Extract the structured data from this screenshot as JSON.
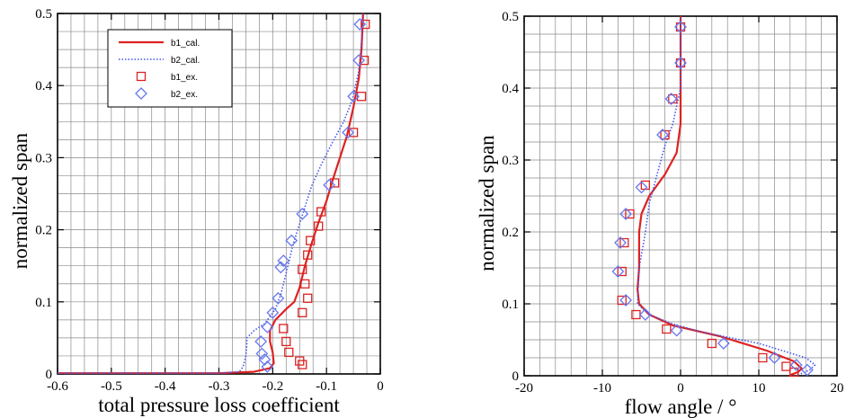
{
  "chart_data": [
    {
      "type": "line",
      "title": "",
      "xlabel": "total pressure loss coefficient",
      "ylabel": "normalized span",
      "xlim": [
        -0.6,
        0
      ],
      "ylim": [
        0,
        0.5
      ],
      "xticks": [
        "-0.6",
        "-0.5",
        "-0.4",
        "-0.3",
        "-0.2",
        "-0.1",
        "0"
      ],
      "yticks": [
        "0",
        "0.1",
        "0.2",
        "0.3",
        "0.4",
        "0.5"
      ],
      "grid": true,
      "legend_position": "top-left",
      "series": [
        {
          "name": "b1_cal.",
          "style": "solid",
          "marker": "none",
          "color": "#dd2222",
          "points": [
            [
              -0.6,
              0.001
            ],
            [
              -0.3,
              0.001
            ],
            [
              -0.235,
              0.003
            ],
            [
              -0.205,
              0.008
            ],
            [
              -0.198,
              0.015
            ],
            [
              -0.2,
              0.03
            ],
            [
              -0.205,
              0.045
            ],
            [
              -0.205,
              0.06
            ],
            [
              -0.195,
              0.075
            ],
            [
              -0.175,
              0.09
            ],
            [
              -0.16,
              0.1
            ],
            [
              -0.15,
              0.12
            ],
            [
              -0.14,
              0.15
            ],
            [
              -0.128,
              0.18
            ],
            [
              -0.115,
              0.21
            ],
            [
              -0.1,
              0.24
            ],
            [
              -0.088,
              0.27
            ],
            [
              -0.075,
              0.3
            ],
            [
              -0.062,
              0.33
            ],
            [
              -0.05,
              0.37
            ],
            [
              -0.04,
              0.41
            ],
            [
              -0.035,
              0.45
            ],
            [
              -0.032,
              0.5
            ]
          ]
        },
        {
          "name": "b2_cal.",
          "style": "dotted",
          "marker": "none",
          "color": "#4455ee",
          "points": [
            [
              -0.6,
              0.001
            ],
            [
              -0.3,
              0.001
            ],
            [
              -0.262,
              0.003
            ],
            [
              -0.255,
              0.01
            ],
            [
              -0.25,
              0.025
            ],
            [
              -0.248,
              0.04
            ],
            [
              -0.248,
              0.05
            ],
            [
              -0.235,
              0.06
            ],
            [
              -0.215,
              0.07
            ],
            [
              -0.195,
              0.09
            ],
            [
              -0.185,
              0.11
            ],
            [
              -0.175,
              0.14
            ],
            [
              -0.162,
              0.18
            ],
            [
              -0.145,
              0.22
            ],
            [
              -0.128,
              0.26
            ],
            [
              -0.11,
              0.29
            ],
            [
              -0.09,
              0.32
            ],
            [
              -0.068,
              0.35
            ],
            [
              -0.052,
              0.38
            ],
            [
              -0.04,
              0.42
            ],
            [
              -0.035,
              0.46
            ],
            [
              -0.033,
              0.5
            ]
          ]
        },
        {
          "name": "b1_ex.",
          "style": "none",
          "marker": "square",
          "color": "#dd2222",
          "points": [
            [
              -0.145,
              0.013
            ],
            [
              -0.15,
              0.018
            ],
            [
              -0.17,
              0.03
            ],
            [
              -0.175,
              0.045
            ],
            [
              -0.18,
              0.063
            ],
            [
              -0.145,
              0.085
            ],
            [
              -0.135,
              0.105
            ],
            [
              -0.14,
              0.125
            ],
            [
              -0.145,
              0.145
            ],
            [
              -0.135,
              0.165
            ],
            [
              -0.13,
              0.185
            ],
            [
              -0.115,
              0.205
            ],
            [
              -0.11,
              0.225
            ],
            [
              -0.085,
              0.265
            ],
            [
              -0.05,
              0.335
            ],
            [
              -0.035,
              0.385
            ],
            [
              -0.03,
              0.435
            ],
            [
              -0.028,
              0.485
            ]
          ]
        },
        {
          "name": "b2_ex.",
          "style": "none",
          "marker": "diamond",
          "color": "#6677ee",
          "points": [
            [
              -0.21,
              0.01
            ],
            [
              -0.215,
              0.02
            ],
            [
              -0.22,
              0.028
            ],
            [
              -0.222,
              0.045
            ],
            [
              -0.21,
              0.065
            ],
            [
              -0.2,
              0.085
            ],
            [
              -0.19,
              0.105
            ],
            [
              -0.185,
              0.148
            ],
            [
              -0.18,
              0.157
            ],
            [
              -0.165,
              0.185
            ],
            [
              -0.145,
              0.222
            ],
            [
              -0.095,
              0.262
            ],
            [
              -0.06,
              0.335
            ],
            [
              -0.05,
              0.385
            ],
            [
              -0.04,
              0.435
            ],
            [
              -0.038,
              0.485
            ]
          ]
        }
      ]
    },
    {
      "type": "line",
      "title": "",
      "xlabel": "flow angle / °",
      "ylabel": "normalized span",
      "xlim": [
        -20,
        20
      ],
      "ylim": [
        0,
        0.5
      ],
      "xticks": [
        "-20",
        "-10",
        "0",
        "10",
        "20"
      ],
      "yticks": [
        "0",
        "0.1",
        "0.2",
        "0.3",
        "0.4",
        "0.5"
      ],
      "grid": true,
      "series": [
        {
          "name": "b1_cal.",
          "style": "solid",
          "marker": "none",
          "color": "#dd2222",
          "points": [
            [
              14,
              0.001
            ],
            [
              15,
              0.005
            ],
            [
              15.5,
              0.01
            ],
            [
              14.5,
              0.02
            ],
            [
              11,
              0.035
            ],
            [
              5,
              0.055
            ],
            [
              -1,
              0.07
            ],
            [
              -4,
              0.085
            ],
            [
              -5.3,
              0.1
            ],
            [
              -5.5,
              0.12
            ],
            [
              -5.3,
              0.15
            ],
            [
              -5.3,
              0.2
            ],
            [
              -5,
              0.225
            ],
            [
              -4,
              0.25
            ],
            [
              -2,
              0.28
            ],
            [
              -0.5,
              0.31
            ],
            [
              0,
              0.35
            ],
            [
              0,
              0.4
            ],
            [
              0,
              0.45
            ],
            [
              0,
              0.5
            ]
          ]
        },
        {
          "name": "b2_cal.",
          "style": "dotted",
          "marker": "none",
          "color": "#4455ee",
          "points": [
            [
              15,
              0.001
            ],
            [
              16.5,
              0.008
            ],
            [
              17.2,
              0.015
            ],
            [
              16,
              0.025
            ],
            [
              10,
              0.045
            ],
            [
              3,
              0.06
            ],
            [
              -1,
              0.072
            ],
            [
              -4,
              0.085
            ],
            [
              -5.5,
              0.1
            ],
            [
              -5.3,
              0.15
            ],
            [
              -4.5,
              0.2
            ],
            [
              -4,
              0.24
            ],
            [
              -3,
              0.28
            ],
            [
              -2,
              0.32
            ],
            [
              -1,
              0.35
            ],
            [
              0,
              0.4
            ],
            [
              0,
              0.45
            ],
            [
              0,
              0.5
            ]
          ]
        },
        {
          "name": "b1_ex.",
          "style": "none",
          "marker": "square",
          "color": "#dd2222",
          "points": [
            [
              14.5,
              0.005
            ],
            [
              13.5,
              0.013
            ],
            [
              10.5,
              0.025
            ],
            [
              4,
              0.045
            ],
            [
              -1.8,
              0.065
            ],
            [
              -5.7,
              0.085
            ],
            [
              -7.5,
              0.105
            ],
            [
              -7.5,
              0.145
            ],
            [
              -7.2,
              0.185
            ],
            [
              -6.5,
              0.225
            ],
            [
              -4.5,
              0.265
            ],
            [
              -2,
              0.335
            ],
            [
              -1,
              0.385
            ],
            [
              0,
              0.435
            ],
            [
              0,
              0.485
            ]
          ]
        },
        {
          "name": "b2_ex.",
          "style": "none",
          "marker": "diamond",
          "color": "#6677ee",
          "points": [
            [
              16.2,
              0.008
            ],
            [
              14.8,
              0.015
            ],
            [
              12,
              0.025
            ],
            [
              5.5,
              0.045
            ],
            [
              -0.5,
              0.063
            ],
            [
              -4.5,
              0.085
            ],
            [
              -7,
              0.105
            ],
            [
              -8,
              0.145
            ],
            [
              -7.7,
              0.185
            ],
            [
              -7,
              0.225
            ],
            [
              -5,
              0.262
            ],
            [
              -2.3,
              0.335
            ],
            [
              -1.2,
              0.385
            ],
            [
              0,
              0.435
            ],
            [
              0,
              0.485
            ]
          ]
        }
      ]
    }
  ]
}
